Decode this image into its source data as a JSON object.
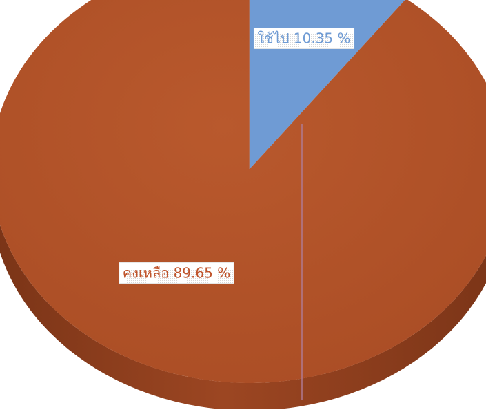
{
  "chart_data": {
    "type": "pie",
    "style": "3d",
    "categories": [
      "ใช้ไป",
      "คงเหลือ"
    ],
    "values": [
      10.35,
      89.65
    ],
    "unit": "%",
    "colors": [
      "#6f9bd4",
      "#b4552b"
    ],
    "label_text_colors": [
      "#6f9bd4",
      "#c0542c"
    ],
    "data_labels": [
      "ใช้ไป 10.35 %",
      "คงเหลือ 89.65 %"
    ],
    "legend": "none",
    "title": ""
  }
}
